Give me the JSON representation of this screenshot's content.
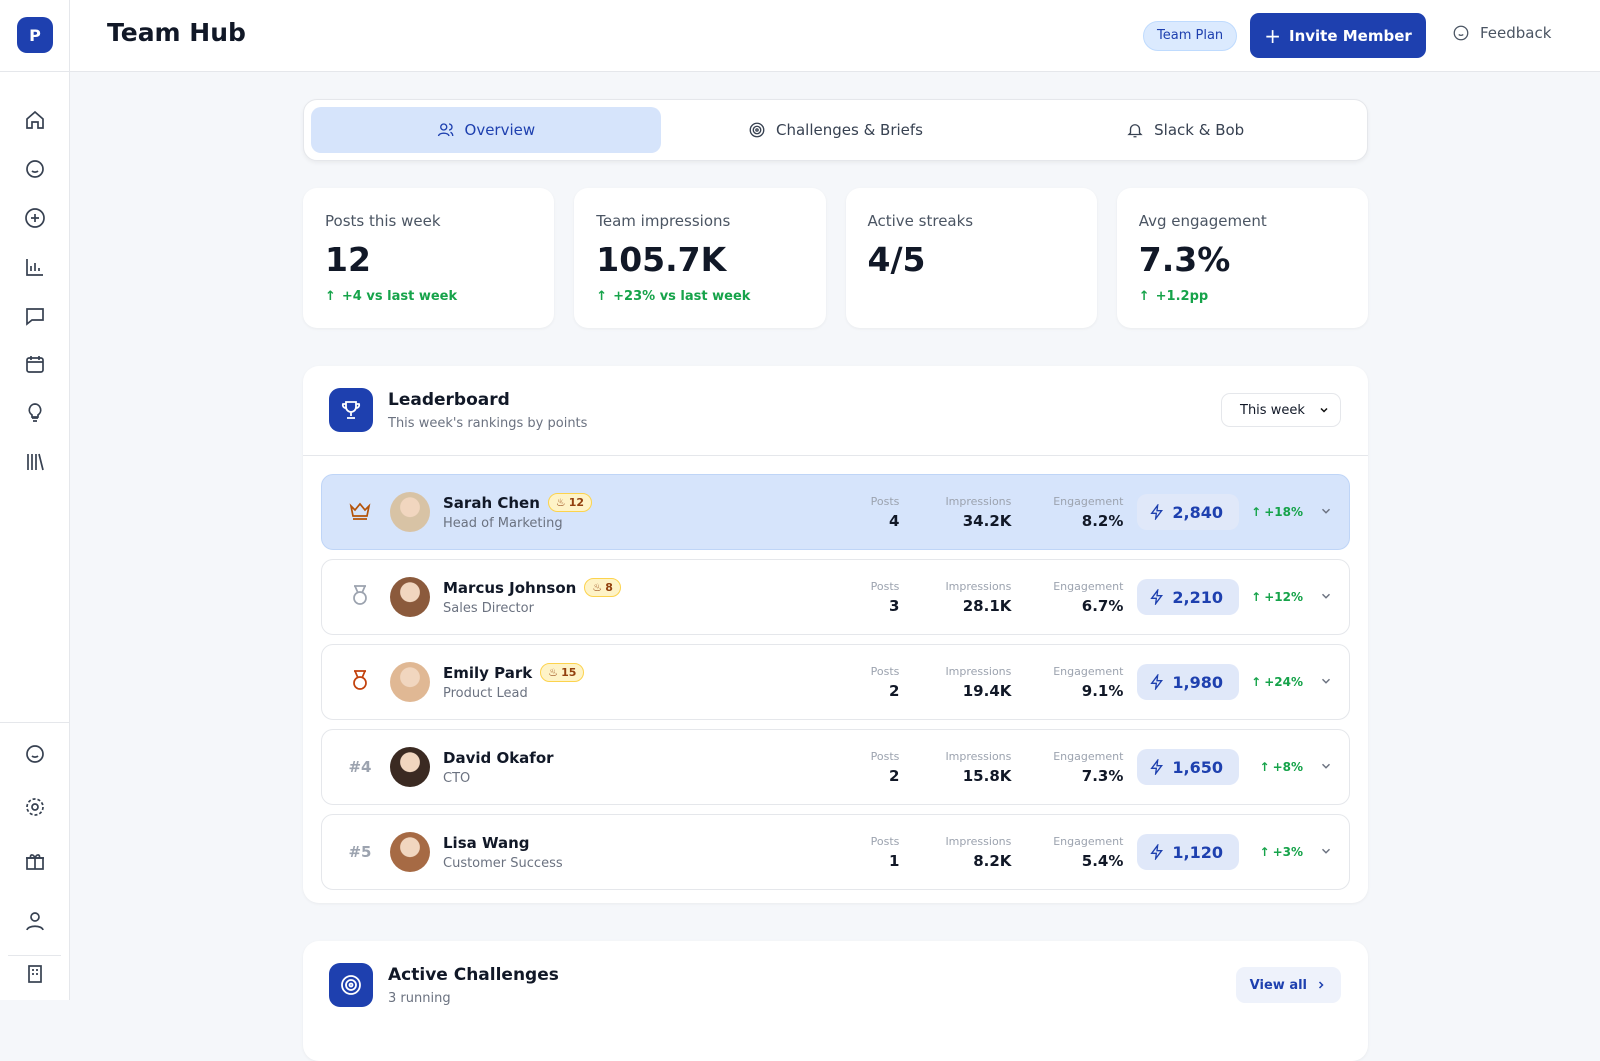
{
  "header": {
    "title": "Team Hub",
    "plan": "Team Plan",
    "invite": "Invite Member",
    "feedback": "Feedback"
  },
  "tabs": [
    "Overview",
    "Challenges & Briefs",
    "Slack & Bob"
  ],
  "stats": [
    {
      "label": "Posts this week",
      "value": "12",
      "change": "+4 vs last week"
    },
    {
      "label": "Team impressions",
      "value": "105.7K",
      "change": "+23% vs last week"
    },
    {
      "label": "Active streaks",
      "value": "4/5"
    },
    {
      "label": "Avg engagement",
      "value": "7.3%",
      "change": "+1.2pp"
    }
  ],
  "leaderboard": {
    "title": "Leaderboard",
    "subtitle": "This week's rankings by points",
    "filter": "This week",
    "columns": [
      "Posts",
      "Impressions",
      "Engagement"
    ],
    "rows": [
      {
        "name": "Sarah Chen",
        "streak": "12",
        "role": "Head of Marketing",
        "posts": "4",
        "impressions": "34.2K",
        "engagement": "8.2%",
        "points": "2,840",
        "change": "+18%"
      },
      {
        "name": "Marcus Johnson",
        "streak": "8",
        "role": "Sales Director",
        "posts": "3",
        "impressions": "28.1K",
        "engagement": "6.7%",
        "points": "2,210",
        "change": "+12%"
      },
      {
        "name": "Emily Park",
        "streak": "15",
        "role": "Product Lead",
        "posts": "2",
        "impressions": "19.4K",
        "engagement": "9.1%",
        "points": "1,980",
        "change": "+24%"
      },
      {
        "rank": "#4",
        "name": "David Okafor",
        "role": "CTO",
        "posts": "2",
        "impressions": "15.8K",
        "engagement": "7.3%",
        "points": "1,650",
        "change": "+8%"
      },
      {
        "rank": "#5",
        "name": "Lisa Wang",
        "role": "Customer Success",
        "posts": "1",
        "impressions": "8.2K",
        "engagement": "5.4%",
        "points": "1,120",
        "change": "+3%"
      }
    ]
  },
  "challenges": {
    "title": "Active Challenges",
    "subtitle": "3 running",
    "view_all": "View all"
  }
}
